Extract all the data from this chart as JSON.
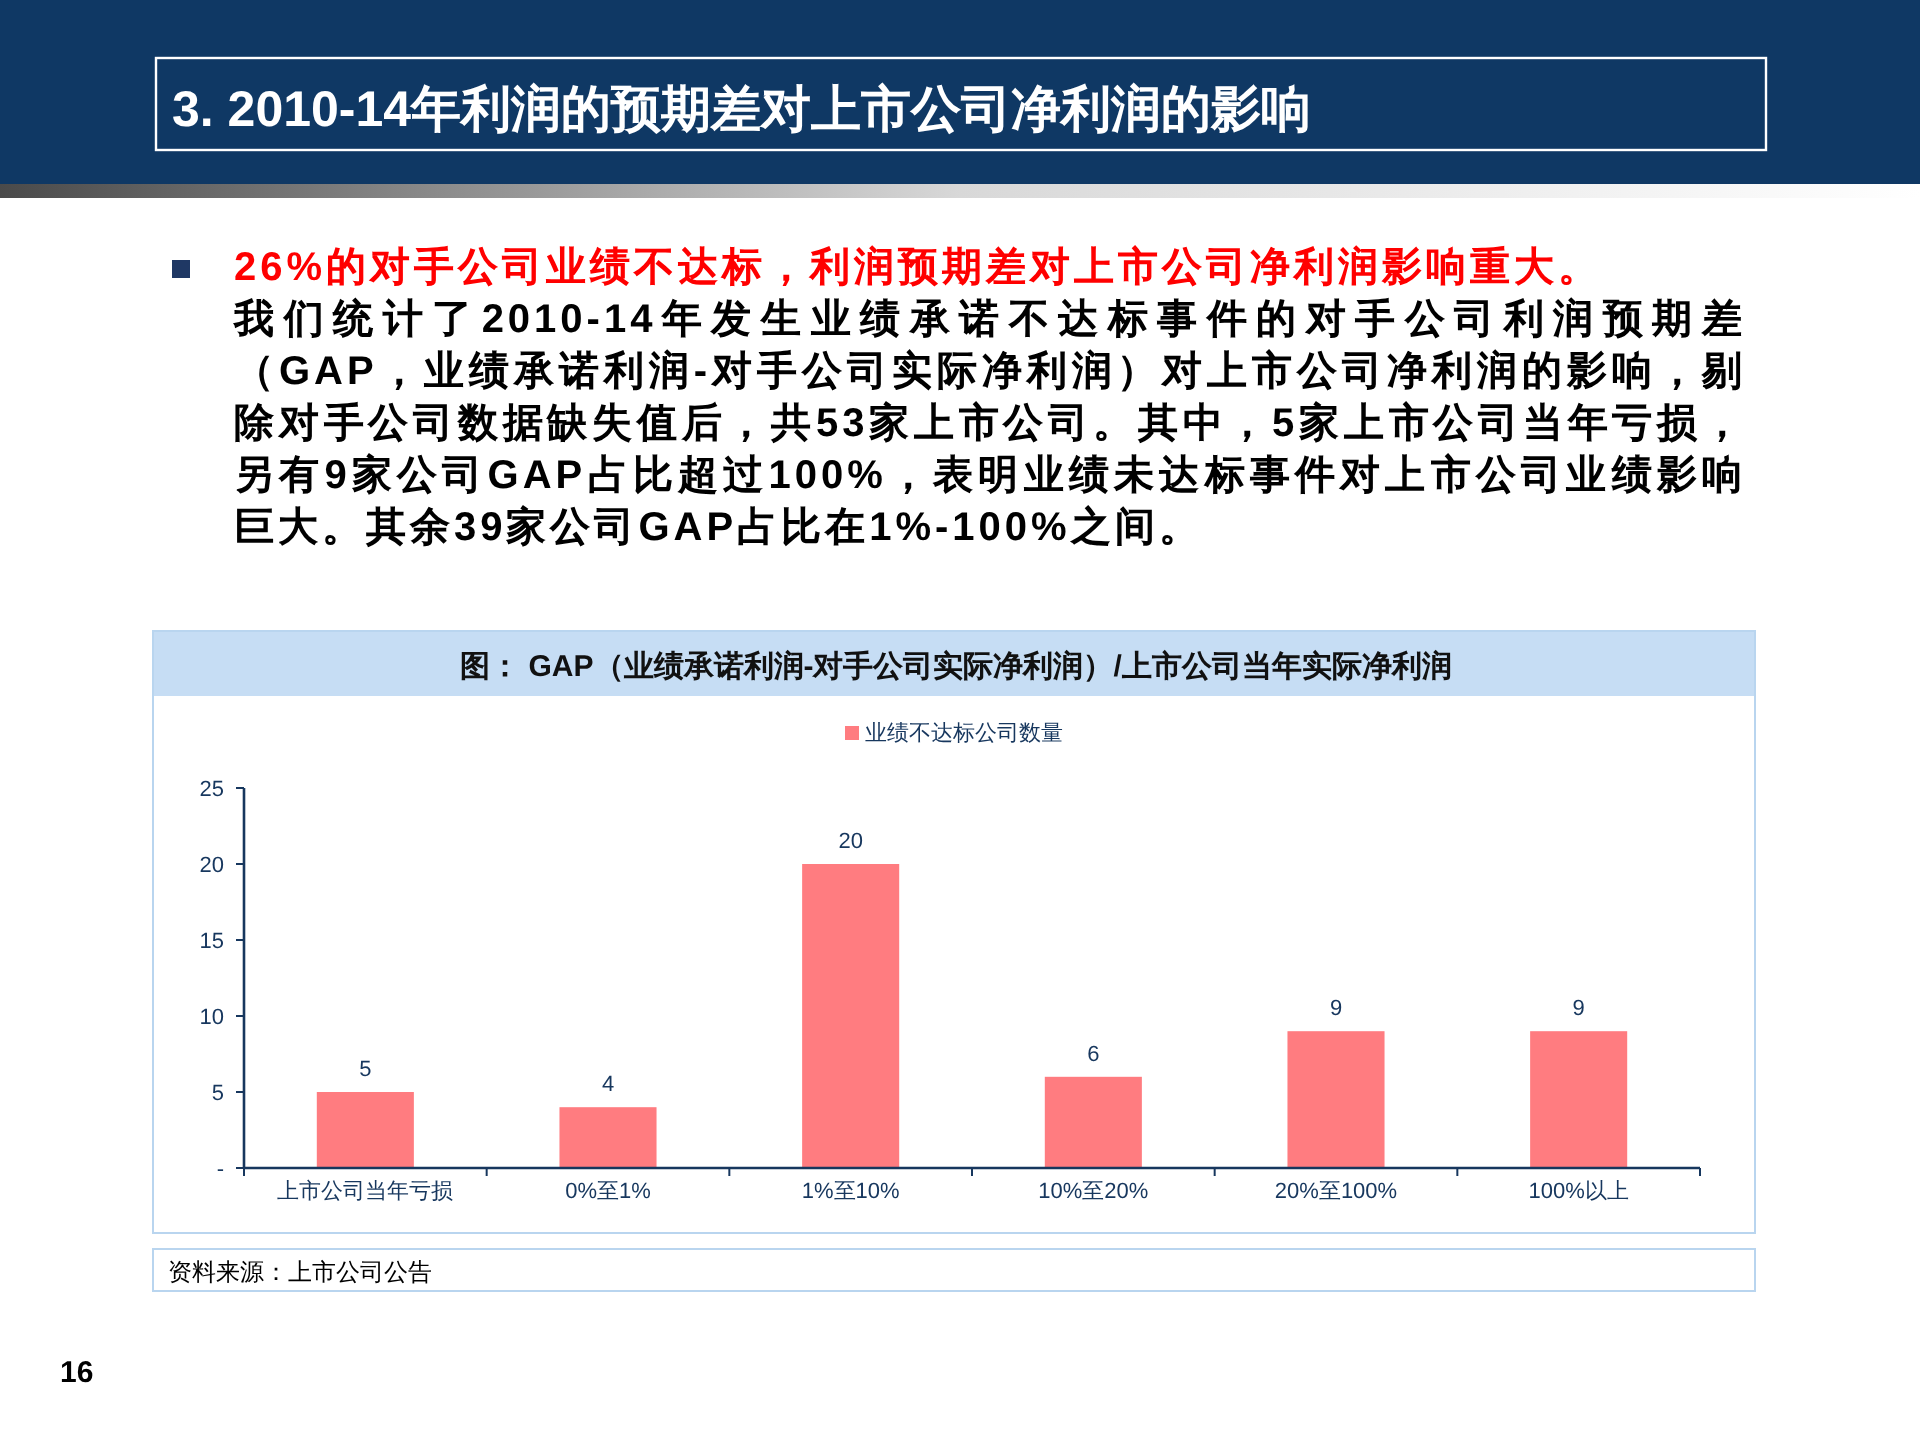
{
  "chart_data": {
    "type": "bar",
    "title": "3. 2010-14年利润的预期差对上市公司净利润的影响",
    "subtitle": "图：  GAP（业绩承诺利润-对手公司实际净利润）/上市公司当年实际净利润",
    "categories": [
      "上市公司当年亏损",
      "0%至1%",
      "1%至10%",
      "10%至20%",
      "20%至100%",
      "100%以上"
    ],
    "series": [
      {
        "name": "业绩不达标公司数量",
        "color": "#ff7c80",
        "values": [
          5,
          4,
          20,
          6,
          9,
          9
        ]
      }
    ],
    "ylim": [
      0,
      25
    ],
    "yticks": [
      {
        "value": 0,
        "label": "-"
      },
      5,
      10,
      15,
      20,
      25
    ],
    "data_labels": true,
    "legend": "top",
    "annotations": [
      "26%的对手公司业绩不达标，利润预期差对上市公司净利润影响重大。",
      "我们统计了2010-14年发生业绩承诺不达标事件的对手公司利润预期差（GAP，业绩承诺利润-对手公司实际净利润）对上市公司净利润的影响，剔除对手公司数据缺失值后，共53家上市公司。其中，5家上市公司当年亏损，另有9家公司GAP占比超过100%，表明业绩未达标事件对上市公司业绩影响巨大。其余39家公司GAP占比在1%-100%之间。",
      "资料来源：上市公司公告",
      "16"
    ]
  }
}
